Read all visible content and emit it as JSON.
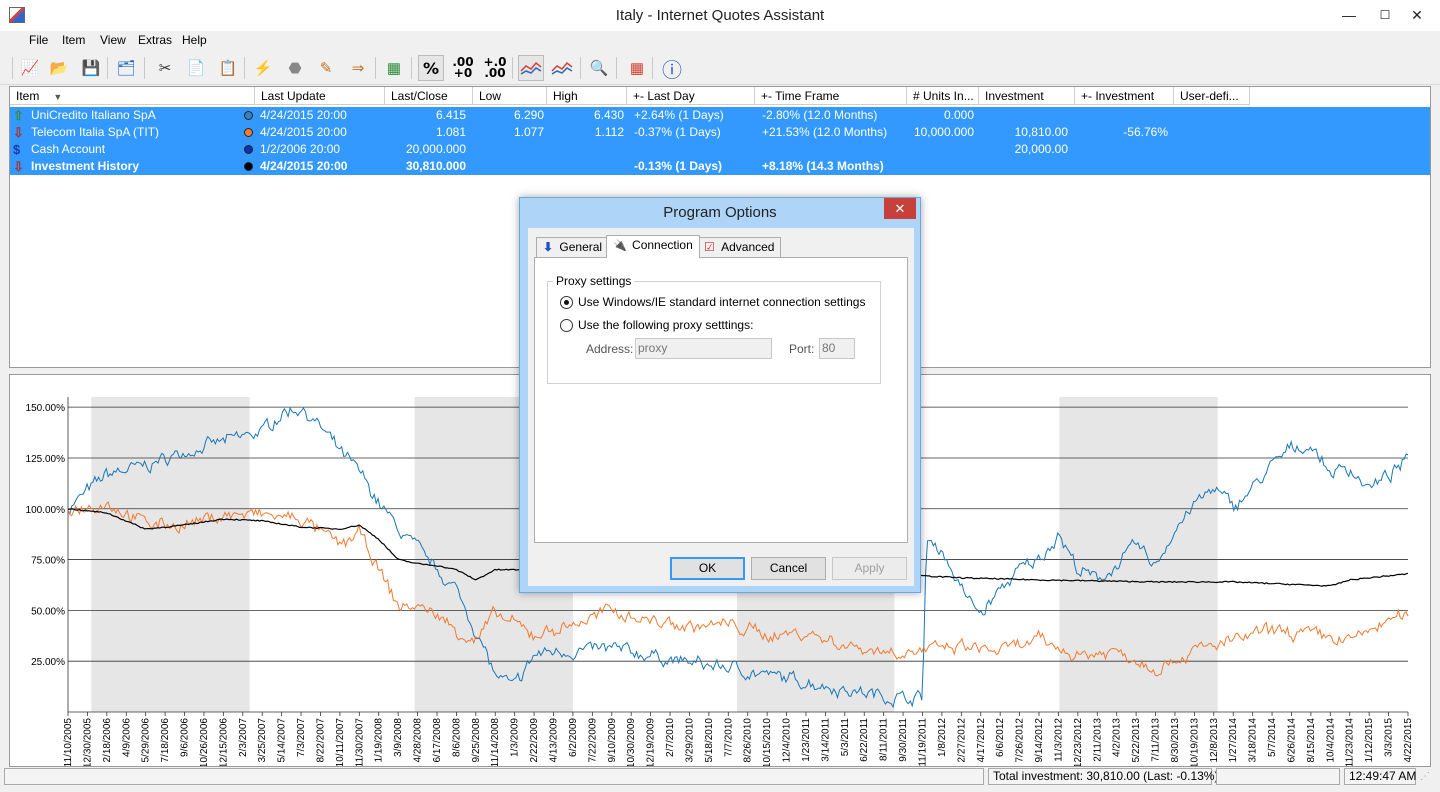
{
  "window": {
    "title": "Italy - Internet Quotes Assistant",
    "minimize": "—",
    "maximize": "☐",
    "close": "✕"
  },
  "menu": [
    "File",
    "Item",
    "View",
    "Extras",
    "Help"
  ],
  "toolbar": {
    "buttons": [
      {
        "name": "chart-icon",
        "glyph": "📈"
      },
      {
        "name": "open-folder-icon",
        "glyph": "📂"
      },
      {
        "name": "save-icon",
        "glyph": "💾"
      },
      {
        "name": "new-item-icon",
        "glyph": "🗂"
      },
      {
        "name": "cut-icon",
        "glyph": "✂"
      },
      {
        "name": "copy-icon",
        "glyph": "📄"
      },
      {
        "name": "paste-icon",
        "glyph": "📋"
      },
      {
        "name": "update-quotes-icon",
        "glyph": "⚡"
      },
      {
        "name": "stop-icon",
        "glyph": "⬣"
      },
      {
        "name": "edit-icon",
        "glyph": "✎"
      },
      {
        "name": "import-icon",
        "glyph": "⇒"
      },
      {
        "name": "transactions-icon",
        "glyph": "▦"
      }
    ],
    "percent": "%",
    "decimals_more": ".00\n+0",
    "decimals_less": "+.0\n.00",
    "right_buttons": [
      {
        "name": "find-icon",
        "glyph": "🔍"
      },
      {
        "name": "calculator-icon",
        "glyph": "▦"
      },
      {
        "name": "info-icon",
        "glyph": "ⓘ"
      }
    ]
  },
  "grid": {
    "columns": [
      "Item",
      "Last Update",
      "Last/Close",
      "Low",
      "High",
      "+- Last Day",
      "+- Time Frame",
      "# Units In...",
      "Investment",
      "+- Investment",
      "User-defi..."
    ],
    "sort_arrow": "▼",
    "rows": [
      {
        "icon": "⇧",
        "icon_color": "#3a8a3a",
        "item": "UniCredito Italiano SpA",
        "dot": "#3a7fc0",
        "last_update": "4/24/2015  20:00",
        "last_close": "6.415",
        "low": "6.290",
        "high": "6.430",
        "last_day": "+2.64% (1 Days)",
        "time_frame": "-2.80% (12.0 Months)",
        "units": "0.000",
        "investment": "",
        "inv_change": "",
        "bold": false
      },
      {
        "icon": "⇩",
        "icon_color": "#b03030",
        "item": "Telecom Italia SpA (TIT)",
        "dot": "#f47a30",
        "last_update": "4/24/2015  20:00",
        "last_close": "1.081",
        "low": "1.077",
        "high": "1.112",
        "last_day": "-0.37% (1 Days)",
        "time_frame": "+21.53% (12.0 Months)",
        "units": "10,000.000",
        "investment": "10,810.00",
        "inv_change": "-56.76%",
        "bold": false
      },
      {
        "icon": "$",
        "icon_color": "#1e3a9e",
        "item": "Cash Account",
        "dot": "#1030b0",
        "last_update": "1/2/2006  20:00",
        "last_close": "20,000.000",
        "low": "",
        "high": "",
        "last_day": "",
        "time_frame": "",
        "units": "",
        "investment": "20,000.00",
        "inv_change": "",
        "bold": false
      },
      {
        "icon": "⇩",
        "icon_color": "#b03030",
        "item": "Investment History",
        "dot": "#000000",
        "last_update": "4/24/2015  20:00",
        "last_close": "30,810.000",
        "low": "",
        "high": "",
        "last_day": "-0.13% (1 Days)",
        "time_frame": "+8.18% (14.3 Months)",
        "units": "",
        "investment": "",
        "inv_change": "",
        "bold": true
      }
    ]
  },
  "chart_data": {
    "type": "line",
    "y_ticks": [
      "150.00%",
      "125.00%",
      "100.00%",
      "75.00%",
      "50.00%",
      "25.00%"
    ],
    "ylim": [
      0,
      155
    ],
    "x_labels": [
      "11/10/2005",
      "12/30/2005",
      "2/18/2006",
      "4/9/2006",
      "5/29/2006",
      "7/18/2006",
      "9/6/2006",
      "10/26/2006",
      "12/15/2006",
      "2/3/2007",
      "3/25/2007",
      "5/14/2007",
      "7/3/2007",
      "8/22/2007",
      "10/11/2007",
      "11/30/2007",
      "1/19/2008",
      "3/9/2008",
      "4/28/2008",
      "6/17/2008",
      "8/6/2008",
      "9/25/2008",
      "11/14/2008",
      "1/3/2009",
      "2/22/2009",
      "4/13/2009",
      "6/2/2009",
      "7/22/2009",
      "9/10/2009",
      "10/30/2009",
      "12/19/2009",
      "2/7/2010",
      "3/29/2010",
      "5/18/2010",
      "7/7/2010",
      "8/26/2010",
      "10/15/2010",
      "12/4/2010",
      "1/23/2011",
      "3/14/2011",
      "5/3/2011",
      "6/22/2011",
      "8/11/2011",
      "9/30/2011",
      "11/19/2011",
      "1/8/2012",
      "2/27/2012",
      "4/17/2012",
      "6/6/2012",
      "7/26/2012",
      "9/14/2012",
      "11/3/2012",
      "12/23/2012",
      "2/11/2013",
      "4/2/2013",
      "5/22/2013",
      "7/11/2013",
      "8/30/2013",
      "10/19/2013",
      "12/8/2013",
      "1/27/2014",
      "3/18/2014",
      "5/7/2014",
      "6/26/2014",
      "8/15/2014",
      "10/4/2014",
      "11/23/2014",
      "1/12/2015",
      "3/3/2015",
      "4/22/2015"
    ],
    "grid": true,
    "shaded_years": true,
    "series": [
      {
        "name": "UniCredito Italiano SpA",
        "color": "#1a76b4",
        "x": [
          0,
          2,
          4,
          6,
          8,
          10,
          11,
          12,
          13,
          14,
          15,
          16,
          17,
          18,
          19,
          20,
          21,
          22,
          23,
          24,
          25,
          26,
          28,
          30,
          32,
          34,
          36,
          38,
          40,
          42,
          43,
          44,
          44.2,
          45,
          46,
          47,
          48,
          49,
          50,
          51,
          52,
          53,
          54,
          55,
          56,
          57,
          58,
          59,
          60,
          61,
          62,
          63,
          64,
          65,
          66,
          67,
          68,
          69
        ],
        "y": [
          100,
          117,
          121,
          128,
          133,
          138,
          147,
          150,
          140,
          128,
          118,
          103,
          90,
          80,
          70,
          60,
          40,
          18,
          12,
          28,
          30,
          30,
          31,
          28,
          24,
          22,
          18,
          15,
          11,
          8,
          7,
          7,
          84,
          80,
          60,
          48,
          60,
          70,
          75,
          88,
          70,
          65,
          72,
          82,
          72,
          90,
          102,
          110,
          101,
          110,
          121,
          130,
          131,
          118,
          120,
          110,
          116,
          124
        ],
        "pattern": "noisy"
      },
      {
        "name": "Telecom Italia SpA (TIT)",
        "color": "#f07a30",
        "x": [
          0,
          2,
          4,
          6,
          8,
          10,
          12,
          14,
          15,
          16,
          17,
          18,
          19,
          20,
          21,
          22,
          24,
          26,
          28,
          30,
          32,
          34,
          36,
          38,
          40,
          42,
          44,
          46,
          48,
          50,
          52,
          54,
          56,
          58,
          60,
          62,
          64,
          66,
          68,
          69
        ],
        "y": [
          100,
          103,
          93,
          92,
          97,
          97,
          95,
          82,
          88,
          70,
          52,
          52,
          48,
          40,
          35,
          48,
          38,
          43,
          50,
          45,
          42,
          43,
          38,
          39,
          33,
          30,
          30,
          32,
          30,
          35,
          28,
          30,
          22,
          30,
          35,
          40,
          38,
          35,
          45,
          47
        ],
        "pattern": "noisy"
      },
      {
        "name": "Investment History",
        "color": "#000000",
        "x": [
          0,
          2,
          4,
          6,
          8,
          10,
          12,
          14,
          15,
          16,
          17,
          18,
          19,
          20,
          21,
          22,
          23,
          30,
          44,
          46,
          50,
          56,
          60,
          65,
          66,
          68,
          69
        ],
        "y": [
          100,
          98,
          90,
          92,
          95,
          94,
          91,
          90,
          92,
          85,
          75,
          73,
          72,
          70,
          65,
          70,
          70,
          68,
          67,
          66,
          65,
          64,
          64,
          62,
          65,
          67,
          68
        ],
        "pattern": "smooth"
      }
    ]
  },
  "dialog": {
    "title": "Program Options",
    "close": "✕",
    "tabs": [
      {
        "label": "General",
        "icon": "⬇"
      },
      {
        "label": "Connection",
        "icon": "🔌"
      },
      {
        "label": "Advanced",
        "icon": "☑"
      }
    ],
    "group_label": "Proxy settings",
    "option1": "Use Windows/IE standard internet connection settings",
    "option2": "Use the following proxy setttings:",
    "address_label": "Address:",
    "address_value": "proxy",
    "port_label": "Port:",
    "port_value": "80",
    "ok": "OK",
    "cancel": "Cancel",
    "apply": "Apply"
  },
  "status": {
    "total": "Total investment: 30,810.00 (Last: -0.13%)",
    "time": "12:49:47 AM"
  }
}
